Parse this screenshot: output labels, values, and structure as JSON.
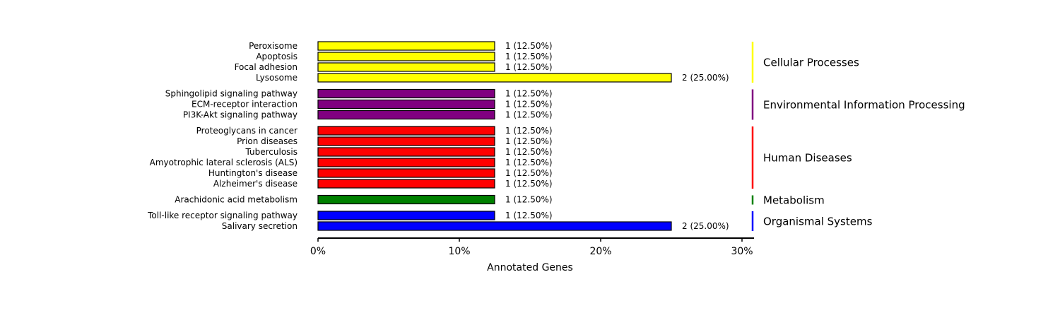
{
  "chart_data": {
    "type": "bar",
    "orientation": "horizontal",
    "xlabel": "Annotated Genes",
    "xlim": [
      0,
      30
    ],
    "xticks": [
      "0%",
      "10%",
      "20%",
      "30%"
    ],
    "grid": false,
    "groups": [
      {
        "name": "Cellular Processes",
        "color": "#ffff00",
        "bars": [
          {
            "label": "Peroxisome",
            "percent": 12.5,
            "value_label": "1 (12.50%)"
          },
          {
            "label": "Apoptosis",
            "percent": 12.5,
            "value_label": "1 (12.50%)"
          },
          {
            "label": "Focal adhesion",
            "percent": 12.5,
            "value_label": "1 (12.50%)"
          },
          {
            "label": "Lysosome",
            "percent": 25.0,
            "value_label": "2 (25.00%)"
          }
        ]
      },
      {
        "name": "Environmental Information Processing",
        "color": "#800080",
        "bars": [
          {
            "label": "Sphingolipid signaling pathway",
            "percent": 12.5,
            "value_label": "1 (12.50%)"
          },
          {
            "label": "ECM-receptor interaction",
            "percent": 12.5,
            "value_label": "1 (12.50%)"
          },
          {
            "label": "PI3K-Akt signaling pathway",
            "percent": 12.5,
            "value_label": "1 (12.50%)"
          }
        ]
      },
      {
        "name": "Human Diseases",
        "color": "#ff0000",
        "bars": [
          {
            "label": "Proteoglycans in cancer",
            "percent": 12.5,
            "value_label": "1 (12.50%)"
          },
          {
            "label": "Prion diseases",
            "percent": 12.5,
            "value_label": "1 (12.50%)"
          },
          {
            "label": "Tuberculosis",
            "percent": 12.5,
            "value_label": "1 (12.50%)"
          },
          {
            "label": "Amyotrophic lateral sclerosis (ALS)",
            "percent": 12.5,
            "value_label": "1 (12.50%)"
          },
          {
            "label": "Huntington's disease",
            "percent": 12.5,
            "value_label": "1 (12.50%)"
          },
          {
            "label": "Alzheimer's disease",
            "percent": 12.5,
            "value_label": "1 (12.50%)"
          }
        ]
      },
      {
        "name": "Metabolism",
        "color": "#008000",
        "bars": [
          {
            "label": "Arachidonic acid metabolism",
            "percent": 12.5,
            "value_label": "1 (12.50%)"
          }
        ]
      },
      {
        "name": "Organismal Systems",
        "color": "#0000ff",
        "bars": [
          {
            "label": "Toll-like receptor signaling pathway",
            "percent": 12.5,
            "value_label": "1 (12.50%)"
          },
          {
            "label": "Salivary secretion",
            "percent": 25.0,
            "value_label": "2 (25.00%)"
          }
        ]
      }
    ]
  }
}
